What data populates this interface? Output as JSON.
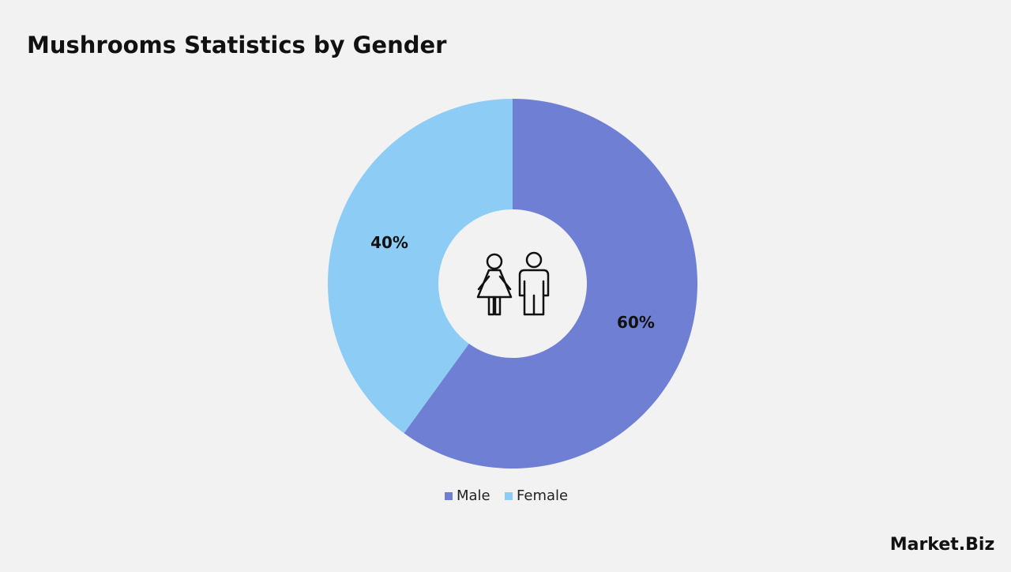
{
  "chart_data": {
    "type": "donut",
    "title": "Mushrooms Statistics by Gender",
    "categories": [
      "Male",
      "Female"
    ],
    "values": [
      60,
      40
    ],
    "value_labels": [
      "60%",
      "40%"
    ],
    "colors": [
      "#6f80d4",
      "#8dcdf5"
    ],
    "legend": "bottom"
  },
  "brand": "Market.Biz"
}
